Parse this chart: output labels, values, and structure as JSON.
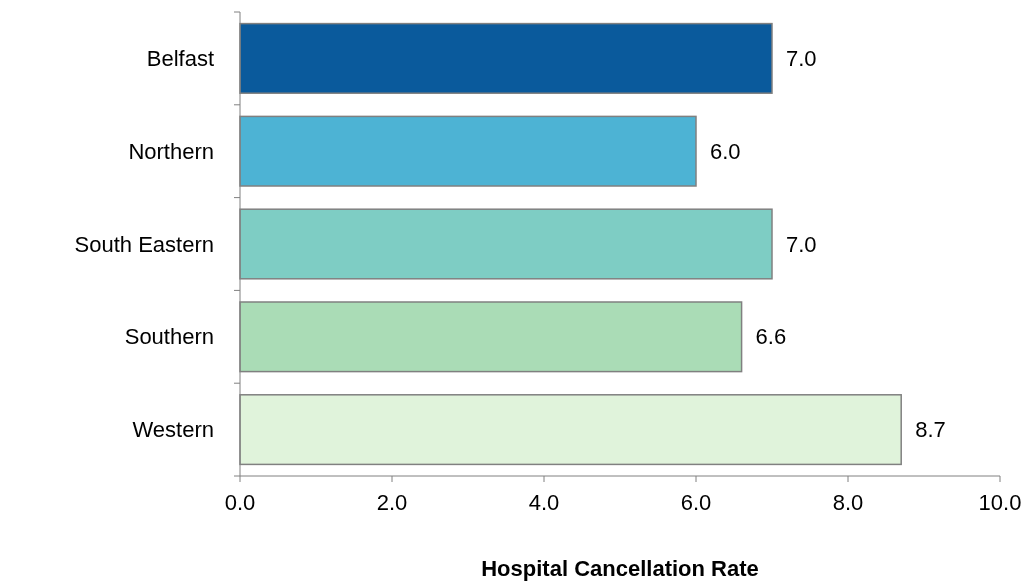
{
  "chart_data": {
    "type": "bar",
    "orientation": "horizontal",
    "xlabel": "Hospital Cancellation Rate",
    "categories": [
      "Belfast",
      "Northern",
      "South Eastern",
      "Southern",
      "Western"
    ],
    "values": [
      7.0,
      6.0,
      7.0,
      6.6,
      8.7
    ],
    "colors": [
      "#0a5a9c",
      "#4db3d4",
      "#7ecdc4",
      "#aadcb6",
      "#e0f3db"
    ],
    "value_labels": [
      "7.0",
      "6.0",
      "7.0",
      "6.6",
      "8.7"
    ],
    "xlim": [
      0,
      10
    ],
    "xticks": [
      {
        "value": 0,
        "label": "0.0"
      },
      {
        "value": 2,
        "label": "2.0"
      },
      {
        "value": 4,
        "label": "4.0"
      },
      {
        "value": 6,
        "label": "6.0"
      },
      {
        "value": 8,
        "label": "8.0"
      },
      {
        "value": 10,
        "label": "10.0"
      }
    ],
    "grid": false
  }
}
